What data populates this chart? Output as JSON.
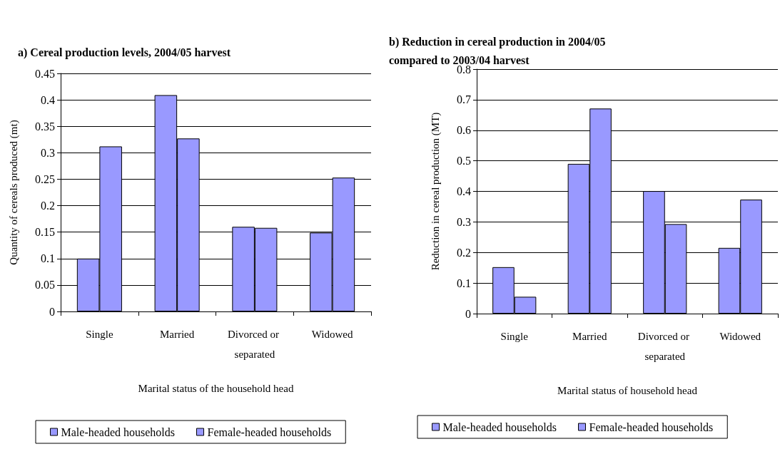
{
  "chart_data": [
    {
      "type": "bar",
      "title": "a) Cereal production levels, 2004/05 harvest",
      "xlabel": "Marital status of the household head",
      "ylabel": "Quantity of cereals produced (mt)",
      "categories": [
        "Single",
        "Married",
        "Divorced or separated",
        "Widowed"
      ],
      "series": [
        {
          "name": "Male-headed households",
          "color": "#9999ff",
          "values": [
            0.1,
            0.409,
            0.16,
            0.149
          ]
        },
        {
          "name": "Female-headed households",
          "color": "#9999ff",
          "values": [
            0.312,
            0.327,
            0.158,
            0.253
          ]
        }
      ],
      "ylim": [
        0,
        0.45
      ],
      "yticks": [
        0,
        0.05,
        0.1,
        0.15,
        0.2,
        0.25,
        0.3,
        0.35,
        0.4,
        0.45
      ],
      "grid": "y",
      "legend": "bottom"
    },
    {
      "type": "bar",
      "title": "b) Reduction in cereal production in 2004/05 compared to 2003/04 harvest",
      "xlabel": "Marital status of household head",
      "ylabel": "Reduction in cereal production (MT)",
      "categories": [
        "Single",
        "Married",
        "Divorced or separated",
        "Widowed"
      ],
      "series": [
        {
          "name": "Male-headed households",
          "color": "#9999ff",
          "values": [
            0.152,
            0.49,
            0.401,
            0.215
          ]
        },
        {
          "name": "Female-headed households",
          "color": "#9999ff",
          "values": [
            0.055,
            0.671,
            0.293,
            0.373
          ]
        }
      ],
      "ylim": [
        0,
        0.8
      ],
      "yticks": [
        0,
        0.1,
        0.2,
        0.3,
        0.4,
        0.5,
        0.6,
        0.7,
        0.8
      ],
      "grid": "y",
      "legend": "bottom"
    }
  ]
}
